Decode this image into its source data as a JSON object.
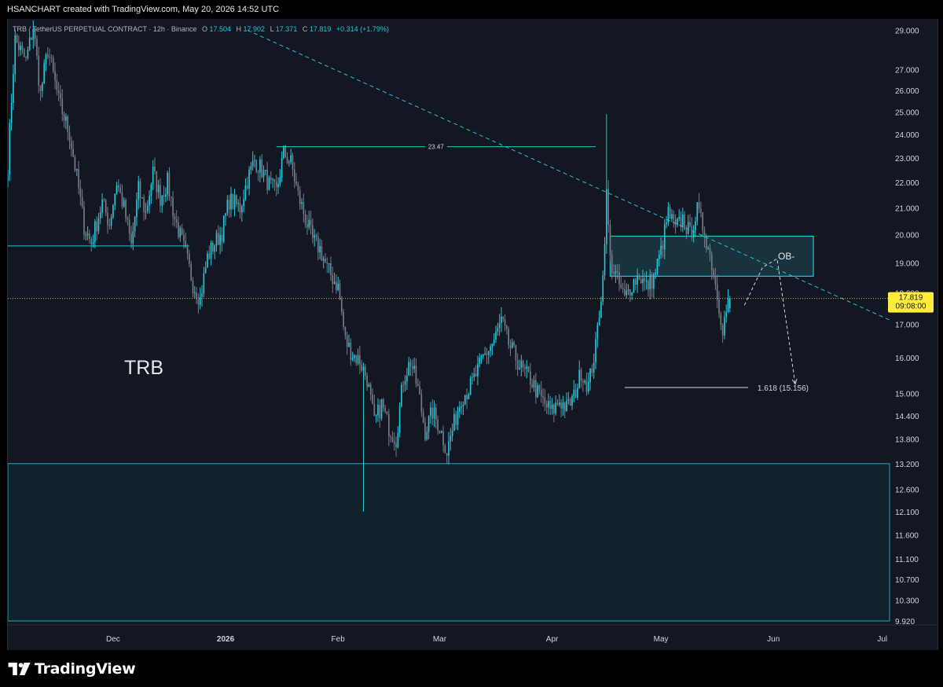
{
  "header": {
    "credit": "HSANCHART created with TradingView.com, May 20, 2026 14:52 UTC"
  },
  "legend": {
    "symbol": "TRB / TetherUS PERPETUAL CONTRACT · 12h · Binance",
    "open_label": "O",
    "open": "17.504",
    "high_label": "H",
    "high": "17.902",
    "low_label": "L",
    "low": "17.371",
    "close_label": "C",
    "close": "17.819",
    "change": "+0.314 (+1.79%)"
  },
  "annotations": {
    "watermark": "TRB",
    "resistance_label": "23.47",
    "ob_label": "OB-",
    "fib_label": "1.618 (15.156)"
  },
  "price_tag": {
    "price": "17.819",
    "countdown": "09:08:00"
  },
  "footer": {
    "brand": "TradingView",
    "logo_icon": "tradingview-logo-icon"
  },
  "colors": {
    "background": "#131722",
    "up_candle": "#26c6da",
    "down_candle": "#787b86",
    "zone_line": "#26a6c5",
    "zone_fill": "#1b3a45",
    "price_tag": "#ffeb3b"
  },
  "chart_data": {
    "type": "candlestick",
    "symbol": "TRB / TetherUS PERPETUAL CONTRACT",
    "interval": "12h",
    "exchange": "Binance",
    "y_axis": {
      "scale": "log",
      "side": "right",
      "ticks": [
        29.0,
        27.0,
        26.0,
        25.0,
        24.0,
        23.0,
        22.0,
        21.0,
        20.0,
        19.0,
        18.0,
        17.0,
        16.0,
        15.0,
        14.4,
        13.8,
        13.2,
        12.6,
        12.1,
        11.6,
        11.1,
        10.7,
        10.3,
        9.92
      ],
      "tick_labels": [
        "29.000",
        "27.000",
        "26.000",
        "25.000",
        "24.000",
        "23.000",
        "22.000",
        "21.000",
        "20.000",
        "19.000",
        "18.000",
        "17.000",
        "16.000",
        "15.000",
        "14.400",
        "13.800",
        "13.200",
        "12.600",
        "12.100",
        "11.600",
        "11.100",
        "10.700",
        "10.300",
        "9.920"
      ],
      "range": [
        9.92,
        29.6
      ]
    },
    "x_axis": {
      "range": [
        "2025-11-02",
        "2026-07-03"
      ],
      "ticks": [
        {
          "date": "2025-12-01",
          "label": "Dec",
          "bold": false
        },
        {
          "date": "2026-01-01",
          "label": "2026",
          "bold": true
        },
        {
          "date": "2026-02-01",
          "label": "Feb",
          "bold": false
        },
        {
          "date": "2026-03-01",
          "label": "Mar",
          "bold": false
        },
        {
          "date": "2026-04-01",
          "label": "Apr",
          "bold": false
        },
        {
          "date": "2026-05-01",
          "label": "May",
          "bold": false
        },
        {
          "date": "2026-06-01",
          "label": "Jun",
          "bold": false
        },
        {
          "date": "2026-07-01",
          "label": "Jul",
          "bold": false
        }
      ]
    },
    "anchors": [
      [
        "2025-11-02",
        22.7
      ],
      [
        "2025-11-04",
        28.5
      ],
      [
        "2025-11-07",
        27.4
      ],
      [
        "2025-11-09",
        29.2
      ],
      [
        "2025-11-11",
        25.8
      ],
      [
        "2025-11-13",
        28.0
      ],
      [
        "2025-11-16",
        25.5
      ],
      [
        "2025-11-19",
        24.0
      ],
      [
        "2025-11-21",
        22.2
      ],
      [
        "2025-11-23",
        20.3
      ],
      [
        "2025-11-25",
        19.7
      ],
      [
        "2025-11-28",
        21.2
      ],
      [
        "2025-11-30",
        20.4
      ],
      [
        "2025-12-02",
        22.0
      ],
      [
        "2025-12-04",
        21.0
      ],
      [
        "2025-12-06",
        19.6
      ],
      [
        "2025-12-08",
        21.7
      ],
      [
        "2025-12-10",
        20.8
      ],
      [
        "2025-12-12",
        22.4
      ],
      [
        "2025-12-14",
        21.4
      ],
      [
        "2025-12-16",
        22.0
      ],
      [
        "2025-12-18",
        20.6
      ],
      [
        "2025-12-21",
        19.3
      ],
      [
        "2025-12-23",
        18.3
      ],
      [
        "2025-12-25",
        17.8
      ],
      [
        "2025-12-27",
        19.2
      ],
      [
        "2025-12-29",
        19.7
      ],
      [
        "2025-12-31",
        20.1
      ],
      [
        "2026-01-02",
        21.3
      ],
      [
        "2026-01-05",
        21.0
      ],
      [
        "2026-01-07",
        22.1
      ],
      [
        "2026-01-09",
        22.9
      ],
      [
        "2026-01-11",
        22.5
      ],
      [
        "2026-01-13",
        21.9
      ],
      [
        "2026-01-15",
        21.6
      ],
      [
        "2026-01-17",
        23.2
      ],
      [
        "2026-01-19",
        22.8
      ],
      [
        "2026-01-21",
        21.5
      ],
      [
        "2026-01-23",
        20.6
      ],
      [
        "2026-01-25",
        19.8
      ],
      [
        "2026-01-27",
        19.5
      ],
      [
        "2026-01-29",
        18.8
      ],
      [
        "2026-02-01",
        18.2
      ],
      [
        "2026-02-03",
        16.5
      ],
      [
        "2026-02-05",
        16.1
      ],
      [
        "2026-02-07",
        15.9
      ],
      [
        "2026-02-09",
        15.4
      ],
      [
        "2026-02-11",
        14.2
      ],
      [
        "2026-02-13",
        14.7
      ],
      [
        "2026-02-15",
        14.1
      ],
      [
        "2026-02-17",
        13.8
      ],
      [
        "2026-02-19",
        15.4
      ],
      [
        "2026-02-21",
        15.9
      ],
      [
        "2026-02-23",
        15.1
      ],
      [
        "2026-02-25",
        14.0
      ],
      [
        "2026-02-27",
        14.5
      ],
      [
        "2026-03-01",
        14.1
      ],
      [
        "2026-03-03",
        13.5
      ],
      [
        "2026-03-05",
        14.2
      ],
      [
        "2026-03-07",
        14.9
      ],
      [
        "2026-03-09",
        15.1
      ],
      [
        "2026-03-11",
        15.5
      ],
      [
        "2026-03-13",
        16.0
      ],
      [
        "2026-03-16",
        16.5
      ],
      [
        "2026-03-18",
        17.1
      ],
      [
        "2026-03-20",
        16.4
      ],
      [
        "2026-03-22",
        16.0
      ],
      [
        "2026-03-24",
        15.6
      ],
      [
        "2026-03-26",
        15.4
      ],
      [
        "2026-03-28",
        15.0
      ],
      [
        "2026-03-30",
        14.7
      ],
      [
        "2026-04-01",
        14.5
      ],
      [
        "2026-04-03",
        14.8
      ],
      [
        "2026-04-05",
        14.6
      ],
      [
        "2026-04-07",
        14.9
      ],
      [
        "2026-04-09",
        15.6
      ],
      [
        "2026-04-11",
        15.2
      ],
      [
        "2026-04-13",
        16.3
      ],
      [
        "2026-04-14",
        17.4
      ],
      [
        "2026-04-15",
        18.5
      ],
      [
        "2026-04-16",
        21.5
      ],
      [
        "2026-04-17",
        19.1
      ],
      [
        "2026-04-19",
        18.4
      ],
      [
        "2026-04-21",
        17.8
      ],
      [
        "2026-04-23",
        18.3
      ],
      [
        "2026-04-25",
        18.6
      ],
      [
        "2026-04-27",
        18.2
      ],
      [
        "2026-04-29",
        18.5
      ],
      [
        "2026-05-01",
        19.4
      ],
      [
        "2026-05-03",
        20.8
      ],
      [
        "2026-05-05",
        20.2
      ],
      [
        "2026-05-07",
        20.6
      ],
      [
        "2026-05-09",
        20.0
      ],
      [
        "2026-05-11",
        20.9
      ],
      [
        "2026-05-13",
        20.1
      ],
      [
        "2026-05-15",
        19.0
      ],
      [
        "2026-05-17",
        17.6
      ],
      [
        "2026-05-18",
        16.9
      ],
      [
        "2026-05-19",
        17.4
      ],
      [
        "2026-05-20",
        17.819
      ]
    ],
    "extreme_wicks": [
      {
        "date": "2026-02-08",
        "low": 12.1
      },
      {
        "date": "2026-04-16",
        "high": 24.9
      },
      {
        "date": "2026-03-03",
        "low": 13.2
      },
      {
        "date": "2025-12-25",
        "low": 17.5
      }
    ],
    "lines": {
      "resistance": {
        "label": "23.47",
        "value": 23.47,
        "from": "2026-01-15",
        "to": "2026-04-13"
      },
      "support_dec": {
        "value": 19.6,
        "from": "2025-11-02",
        "to": "2025-12-22"
      },
      "current_price": {
        "value": 17.819,
        "style": "dotted"
      },
      "fib_extension": {
        "label": "1.618 (15.156)",
        "value": 15.156,
        "from": "2026-04-21",
        "to": "2026-05-25"
      }
    },
    "trendline": {
      "style": "dashed",
      "p1": [
        "2026-01-07",
        29.0
      ],
      "p2": [
        "2026-05-31",
        18.9
      ]
    },
    "zones": [
      {
        "name": "OB-",
        "top": 19.95,
        "bottom": 18.55,
        "from": "2026-04-17",
        "to": "2026-06-12"
      },
      {
        "name": "demand",
        "top": 13.2,
        "bottom": 9.92,
        "from": "2025-11-02",
        "to": "2026-07-03"
      }
    ],
    "projection": [
      [
        "2026-05-24",
        17.6
      ],
      [
        "2026-05-29",
        18.85
      ],
      [
        "2026-06-02",
        19.15
      ],
      [
        "2026-06-07",
        15.25
      ]
    ]
  }
}
